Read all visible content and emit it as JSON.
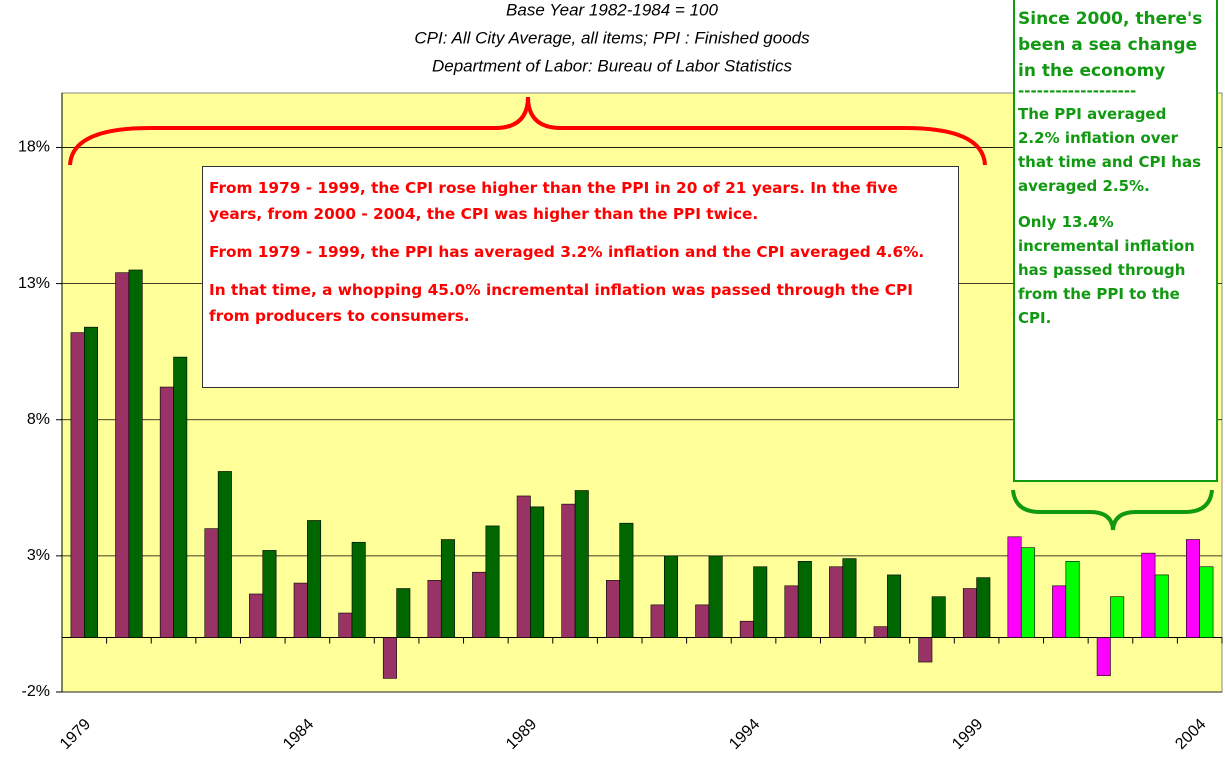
{
  "chart_data": {
    "type": "bar",
    "subtitle": [
      "Base Year 1982-1984 = 100",
      "CPI: All City Average, all items;    PPI : Finished goods",
      "Department of Labor: Bureau of Labor Statistics"
    ],
    "categories": [
      "1979",
      null,
      null,
      null,
      null,
      "1984",
      null,
      null,
      null,
      null,
      "1989",
      null,
      null,
      null,
      null,
      "1994",
      null,
      null,
      null,
      null,
      "1999",
      null,
      null,
      null,
      null,
      "2004"
    ],
    "series": [
      {
        "values": [
          11.2,
          13.4,
          9.2,
          4.0,
          1.6,
          2.0,
          0.9,
          -1.5,
          2.1,
          2.4,
          5.2,
          4.9,
          2.1,
          1.2,
          1.2,
          0.6,
          1.9,
          2.6,
          0.4,
          -0.9,
          1.8,
          3.7,
          1.9,
          -1.4,
          3.1,
          3.6
        ],
        "colors": [
          "#993366",
          "#993366",
          "#993366",
          "#993366",
          "#993366",
          "#993366",
          "#993366",
          "#993366",
          "#993366",
          "#993366",
          "#993366",
          "#993366",
          "#993366",
          "#993366",
          "#993366",
          "#993366",
          "#993366",
          "#993366",
          "#993366",
          "#993366",
          "#993366",
          "#ff00ff",
          "#ff00ff",
          "#ff00ff",
          "#ff00ff",
          "#ff00ff"
        ]
      },
      {
        "values": [
          11.4,
          13.5,
          10.3,
          6.1,
          3.2,
          4.3,
          3.5,
          1.8,
          3.6,
          4.1,
          4.8,
          5.4,
          4.2,
          3.0,
          3.0,
          2.6,
          2.8,
          2.9,
          2.3,
          1.5,
          2.2,
          3.3,
          2.8,
          1.5,
          2.3,
          2.6
        ],
        "colors": [
          "#006600",
          "#006600",
          "#006600",
          "#006600",
          "#006600",
          "#006600",
          "#006600",
          "#006600",
          "#006600",
          "#006600",
          "#006600",
          "#006600",
          "#006600",
          "#006600",
          "#006600",
          "#006600",
          "#006600",
          "#006600",
          "#006600",
          "#006600",
          "#006600",
          "#00ff00",
          "#00ff00",
          "#00ff00",
          "#00ff00",
          "#00ff00"
        ]
      }
    ],
    "ylim": [
      -2,
      20
    ],
    "yticks": [
      {
        "value": -2,
        "label": "-2%"
      },
      {
        "value": 3,
        "label": "3%"
      },
      {
        "value": 8,
        "label": "8%"
      },
      {
        "value": 13,
        "label": "13%"
      },
      {
        "value": 18,
        "label": "18%"
      }
    ],
    "grid": true,
    "plot_background": "#ffff99",
    "annotations": {
      "red_box": [
        "From 1979 - 1999, the CPI rose higher than the PPI in 20 of 21 years.  In the five years, from 2000 - 2004, the CPI was higher than the PPI twice.",
        "From 1979 - 1999, the PPI has averaged 3.2% inflation and the CPI averaged 4.6%.",
        "In that time, a whopping 45.0% incremental inflation was passed through the CPI from producers to consumers."
      ],
      "green_box": {
        "heading": "Since 2000, there's been a sea change in the economy",
        "divider": "-------------------",
        "paragraphs": [
          "The PPI averaged 2.2% inflation over that time and CPI has averaged 2.5%.",
          "Only 13.4% incremental inflation has passed through from the PPI to the CPI."
        ]
      }
    }
  }
}
